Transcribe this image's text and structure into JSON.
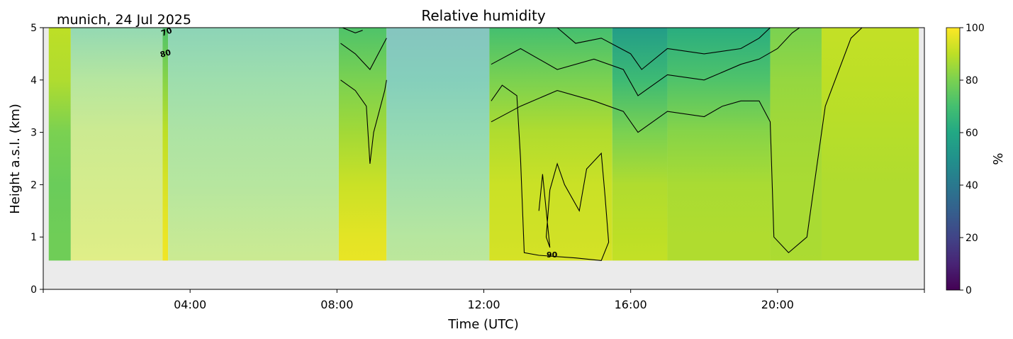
{
  "chart_data": {
    "type": "heatmap",
    "title": "Relative humidity",
    "subtitle": "munich, 24 Jul 2025",
    "xlabel": "Time (UTC)",
    "ylabel": "Height a.s.l. (km)",
    "x_unit": "hours UTC",
    "xlim": [
      0,
      24
    ],
    "ylim": [
      0,
      5
    ],
    "x_ticks": [
      4,
      8,
      12,
      16,
      20
    ],
    "x_tick_labels": [
      "04:00",
      "08:00",
      "12:00",
      "16:00",
      "20:00"
    ],
    "y_ticks": [
      0,
      1,
      2,
      3,
      4,
      5
    ],
    "y_tick_labels": [
      "0",
      "1",
      "2",
      "3",
      "4",
      "5"
    ],
    "colorbar": {
      "label": "%",
      "range": [
        0,
        100
      ],
      "ticks": [
        0,
        20,
        40,
        60,
        80,
        100
      ],
      "tick_labels": [
        "0",
        "20",
        "40",
        "60",
        "80",
        "100"
      ],
      "colormap": "viridis"
    },
    "contour_levels": [
      60,
      70,
      80,
      90
    ],
    "contour_labels": [
      "70",
      "80",
      "90"
    ],
    "background_color": "#ebebeb",
    "data_extent": {
      "x": [
        0.15,
        23.85
      ],
      "y_bottom_km": 0.55
    },
    "segments": [
      {
        "start": 0.15,
        "end": 0.75,
        "faded": false,
        "profile_km": [
          0,
          1,
          2,
          3,
          4,
          5
        ],
        "rh": [
          78,
          78,
          77,
          80,
          88,
          90
        ]
      },
      {
        "start": 0.75,
        "end": 3.25,
        "faded": true,
        "profile_km": [
          0,
          1,
          2,
          3,
          4,
          5
        ],
        "rh": [
          93,
          90,
          88,
          86,
          80,
          68
        ]
      },
      {
        "start": 3.25,
        "end": 3.4,
        "faded": false,
        "profile_km": [
          0,
          1,
          2,
          3,
          4,
          5
        ],
        "rh": [
          99,
          97,
          94,
          90,
          82,
          72
        ]
      },
      {
        "start": 3.4,
        "end": 8.05,
        "faded": true,
        "profile_km": [
          0,
          1,
          2,
          3,
          4,
          5
        ],
        "rh": [
          88,
          84,
          80,
          77,
          72,
          64
        ]
      },
      {
        "start": 8.05,
        "end": 9.35,
        "faded": false,
        "profile_km": [
          0,
          1,
          2,
          3,
          4,
          5
        ],
        "rh": [
          98,
          96,
          92,
          86,
          80,
          72
        ]
      },
      {
        "start": 9.35,
        "end": 12.15,
        "faded": true,
        "profile_km": [
          0,
          1,
          2,
          3,
          4,
          5
        ],
        "rh": [
          84,
          80,
          74,
          68,
          60,
          52
        ]
      },
      {
        "start": 12.15,
        "end": 15.5,
        "faded": false,
        "profile_km": [
          0,
          1,
          2,
          3,
          4,
          5
        ],
        "rh": [
          95,
          93,
          92,
          88,
          80,
          70
        ]
      },
      {
        "start": 15.5,
        "end": 17.0,
        "faded": false,
        "profile_km": [
          0,
          1,
          2,
          3,
          4,
          5
        ],
        "rh": [
          92,
          90,
          88,
          80,
          68,
          55
        ]
      },
      {
        "start": 17.0,
        "end": 19.8,
        "faded": false,
        "profile_km": [
          0,
          1,
          2,
          3,
          4,
          5
        ],
        "rh": [
          88,
          88,
          87,
          82,
          72,
          62
        ]
      },
      {
        "start": 19.8,
        "end": 21.2,
        "faded": false,
        "profile_km": [
          0,
          1,
          2,
          3,
          4,
          5
        ],
        "rh": [
          88,
          87,
          87,
          86,
          84,
          80
        ]
      },
      {
        "start": 21.2,
        "end": 23.85,
        "faded": false,
        "profile_km": [
          0,
          1,
          2,
          3,
          4,
          5
        ],
        "rh": [
          88,
          88,
          88,
          89,
          90,
          91
        ]
      }
    ],
    "contours": [
      {
        "level": 90,
        "points": [
          [
            12.2,
            3.6
          ],
          [
            12.5,
            3.9
          ],
          [
            12.9,
            3.7
          ],
          [
            13.0,
            2.5
          ],
          [
            13.1,
            0.7
          ],
          [
            13.5,
            0.65
          ],
          [
            14.5,
            0.6
          ],
          [
            15.2,
            0.55
          ],
          [
            15.4,
            0.9
          ],
          [
            15.3,
            1.8
          ],
          [
            15.2,
            2.6
          ],
          [
            14.8,
            2.3
          ],
          [
            14.6,
            1.5
          ],
          [
            14.2,
            2.0
          ],
          [
            14.0,
            2.4
          ],
          [
            13.8,
            1.9
          ],
          [
            13.7,
            1.0
          ],
          [
            13.8,
            0.8
          ],
          [
            13.6,
            2.2
          ],
          [
            13.5,
            1.5
          ]
        ]
      },
      {
        "level": 80,
        "points": [
          [
            12.2,
            3.2
          ],
          [
            13.0,
            3.5
          ],
          [
            14.0,
            3.8
          ],
          [
            15.0,
            3.6
          ],
          [
            15.8,
            3.4
          ],
          [
            16.2,
            3.0
          ],
          [
            17.0,
            3.4
          ],
          [
            18.0,
            3.3
          ],
          [
            18.5,
            3.5
          ],
          [
            19.0,
            3.6
          ],
          [
            19.5,
            3.6
          ],
          [
            19.8,
            3.2
          ],
          [
            19.9,
            1.0
          ],
          [
            20.3,
            0.7
          ],
          [
            20.8,
            1.0
          ],
          [
            21.0,
            2.0
          ],
          [
            21.3,
            3.5
          ],
          [
            22.0,
            4.8
          ],
          [
            22.3,
            5.0
          ]
        ]
      },
      {
        "level": 70,
        "points": [
          [
            12.2,
            4.3
          ],
          [
            13.0,
            4.6
          ],
          [
            14.0,
            4.2
          ],
          [
            15.0,
            4.4
          ],
          [
            15.8,
            4.2
          ],
          [
            16.2,
            3.7
          ],
          [
            17.0,
            4.1
          ],
          [
            18.0,
            4.0
          ],
          [
            19.0,
            4.3
          ],
          [
            19.5,
            4.4
          ],
          [
            20.0,
            4.6
          ],
          [
            20.4,
            4.9
          ],
          [
            20.6,
            5.0
          ]
        ]
      },
      {
        "level": 60,
        "points": [
          [
            14.0,
            5.0
          ],
          [
            14.5,
            4.7
          ],
          [
            15.2,
            4.8
          ],
          [
            16.0,
            4.5
          ],
          [
            16.3,
            4.2
          ],
          [
            17.0,
            4.6
          ],
          [
            18.0,
            4.5
          ],
          [
            19.0,
            4.6
          ],
          [
            19.5,
            4.8
          ],
          [
            19.8,
            5.0
          ]
        ]
      },
      {
        "level": 80,
        "points": [
          [
            8.1,
            4.0
          ],
          [
            8.5,
            3.8
          ],
          [
            8.8,
            3.5
          ],
          [
            8.9,
            2.4
          ],
          [
            9.0,
            3.0
          ],
          [
            9.3,
            3.8
          ],
          [
            9.35,
            4.0
          ]
        ]
      },
      {
        "level": 70,
        "points": [
          [
            8.1,
            4.7
          ],
          [
            8.5,
            4.5
          ],
          [
            8.9,
            4.2
          ],
          [
            9.2,
            4.6
          ],
          [
            9.35,
            4.8
          ]
        ]
      },
      {
        "level": 60,
        "points": [
          [
            8.15,
            5.0
          ],
          [
            8.5,
            4.9
          ],
          [
            8.7,
            4.95
          ]
        ]
      }
    ]
  }
}
